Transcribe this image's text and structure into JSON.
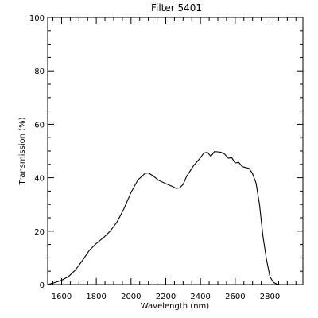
{
  "chart_data": {
    "type": "line",
    "title": "Filter 5401",
    "xlabel": "Wavelength (nm)",
    "ylabel": "Transmission (%)",
    "xlim": [
      1520,
      2990
    ],
    "ylim": [
      0,
      100
    ],
    "x_ticks": [
      1600,
      1800,
      2000,
      2200,
      2400,
      2600,
      2800
    ],
    "x_tick_labels": [
      "1600",
      "1800",
      "2000",
      "2200",
      "2400",
      "2600",
      "2800"
    ],
    "y_ticks": [
      0,
      20,
      40,
      60,
      80,
      100
    ],
    "y_tick_labels": [
      "0",
      "20",
      "40",
      "60",
      "80",
      "100"
    ],
    "grid": false,
    "legend": "none",
    "series": [
      {
        "x": [
          1520,
          1560,
          1600,
          1640,
          1680,
          1720,
          1760,
          1800,
          1840,
          1880,
          1920,
          1960,
          2000,
          2040,
          2080,
          2100,
          2120,
          2160,
          2200,
          2240,
          2260,
          2280,
          2300,
          2320,
          2360,
          2400,
          2420,
          2440,
          2460,
          2480,
          2500,
          2520,
          2540,
          2560,
          2580,
          2600,
          2620,
          2640,
          2660,
          2680,
          2700,
          2720,
          2740,
          2760,
          2780,
          2800,
          2820,
          2840,
          2860,
          2900,
          2950,
          2990
        ],
        "y": [
          0.0,
          0.7,
          1.6,
          3.0,
          5.5,
          9.0,
          12.8,
          15.4,
          17.5,
          20.0,
          23.5,
          28.5,
          34.5,
          39.2,
          41.6,
          41.8,
          41.0,
          39.0,
          37.8,
          36.7,
          36.0,
          36.2,
          37.5,
          40.5,
          44.5,
          47.5,
          49.3,
          49.5,
          48.0,
          49.8,
          49.7,
          49.5,
          48.8,
          47.3,
          47.5,
          45.5,
          45.8,
          44.2,
          43.8,
          43.5,
          41.5,
          38.0,
          30.0,
          18.0,
          9.5,
          3.0,
          0.8,
          0.2,
          0.0,
          0.0,
          0.0,
          0.0
        ]
      }
    ]
  }
}
